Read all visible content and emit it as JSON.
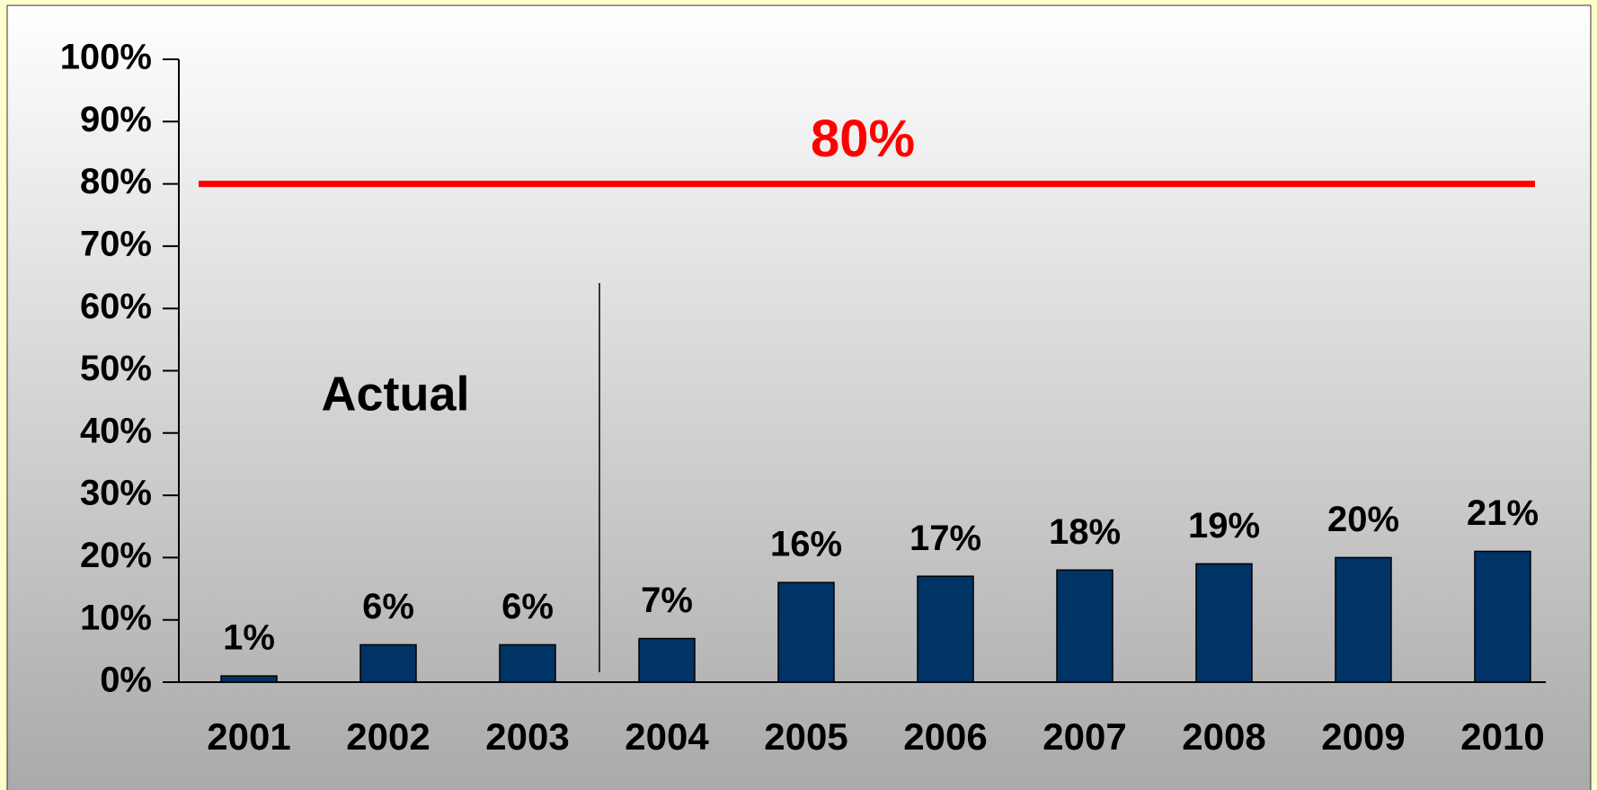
{
  "chart_data": {
    "type": "bar",
    "categories": [
      "2001",
      "2002",
      "2003",
      "2004",
      "2005",
      "2006",
      "2007",
      "2008",
      "2009",
      "2010"
    ],
    "values": [
      1,
      6,
      6,
      7,
      16,
      17,
      18,
      19,
      20,
      21
    ],
    "value_labels": [
      "1%",
      "6%",
      "6%",
      "7%",
      "16%",
      "17%",
      "18%",
      "19%",
      "20%",
      "21%"
    ],
    "color": "#003366",
    "ylim": [
      0,
      100
    ],
    "yticks": [
      {
        "value": 0,
        "label": "0%"
      },
      {
        "value": 10,
        "label": "10%"
      },
      {
        "value": 20,
        "label": "20%"
      },
      {
        "value": 30,
        "label": "30%"
      },
      {
        "value": 40,
        "label": "40%"
      },
      {
        "value": 50,
        "label": "50%"
      },
      {
        "value": 60,
        "label": "60%"
      },
      {
        "value": 70,
        "label": "70%"
      },
      {
        "value": 80,
        "label": "80%"
      },
      {
        "value": 90,
        "label": "90%"
      },
      {
        "value": 100,
        "label": "100%"
      }
    ],
    "grid": false,
    "target": {
      "value": 80,
      "label": "80%",
      "color": "#ff0000"
    },
    "annotations": [
      "Actual"
    ]
  }
}
